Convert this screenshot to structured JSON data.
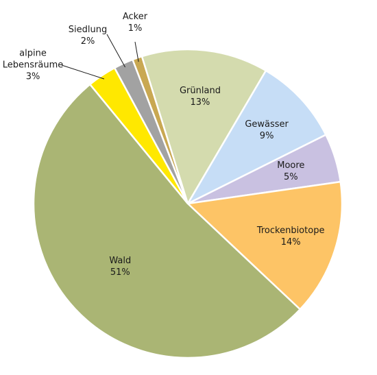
{
  "chart_data": {
    "type": "pie",
    "categories": [
      "Acker",
      "Grünland",
      "Gewässer",
      "Moore",
      "Trockenbiotope",
      "Wald",
      "alpine Lebensräume",
      "Siedlung"
    ],
    "values": [
      1,
      13,
      9,
      5,
      14,
      51,
      3,
      2
    ],
    "value_labels": [
      "1%",
      "13%",
      "9%",
      "5%",
      "14%",
      "51%",
      "3%",
      "2%"
    ],
    "colors": [
      "#c9a852",
      "#d4dbae",
      "#c6ddf6",
      "#c9c1e1",
      "#fdc466",
      "#aab574",
      "#ffe800",
      "#a2a2a2"
    ]
  }
}
